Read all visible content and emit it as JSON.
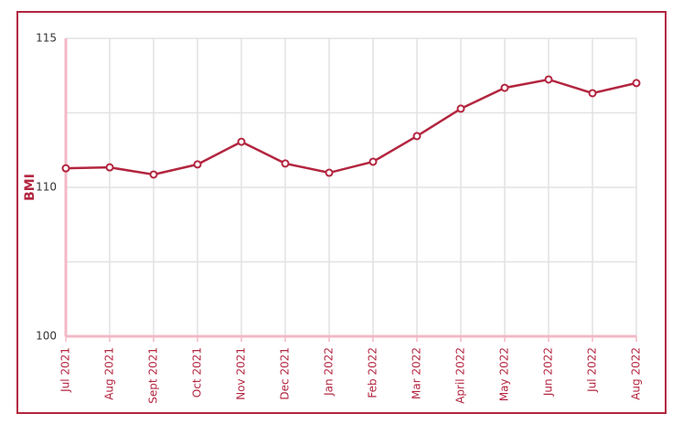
{
  "chart_data": {
    "type": "line",
    "y_label": "BMI",
    "categories": [
      "Jul 2021",
      "Aug 2021",
      "Sept 2021",
      "Oct 2021",
      "Nov 2021",
      "Dec 2021",
      "Jan 2022",
      "Feb 2022",
      "Mar 2022",
      "April 2022",
      "May 2022",
      "Jun 2022",
      "Jul 2022",
      "Aug 2022"
    ],
    "series": [
      {
        "name": "BMI",
        "color": "#b3253f",
        "values": [
          110.64,
          110.67,
          110.43,
          110.77,
          111.53,
          110.8,
          110.49,
          110.86,
          111.72,
          112.64,
          113.34,
          113.62,
          113.16,
          113.5
        ]
      }
    ],
    "ylim": [
      100,
      115
    ],
    "yticks": [
      100,
      110,
      115
    ],
    "y_scale": "piecewise",
    "grid": true
  }
}
